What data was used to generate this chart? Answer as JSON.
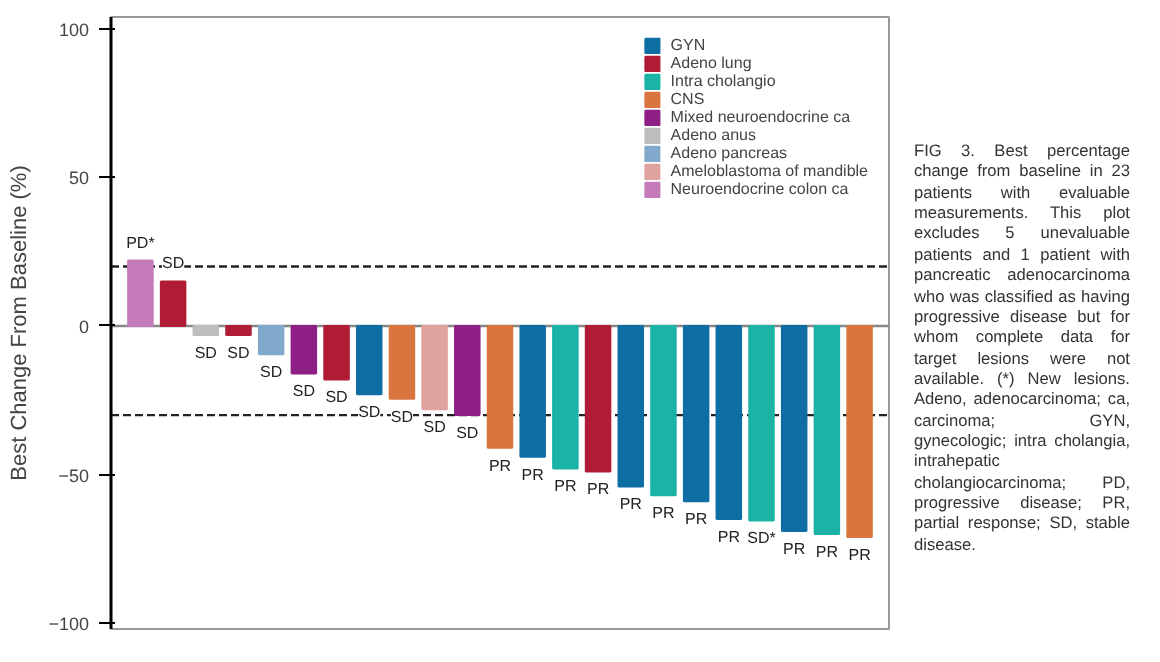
{
  "chart_data": {
    "type": "bar",
    "ylabel": "Best Change From Baseline (%)",
    "categories": [
      null,
      null,
      null,
      null,
      null,
      null,
      null,
      null,
      null,
      null,
      null,
      null,
      null,
      null,
      null,
      null,
      null,
      null,
      null,
      null,
      null,
      null,
      null
    ],
    "series": [
      {
        "name": "GYN",
        "color": "#0e6ea3",
        "values": [
          null,
          null,
          null,
          null,
          null,
          null,
          null,
          -23,
          null,
          null,
          null,
          null,
          -44,
          null,
          null,
          -54,
          null,
          -59,
          -65,
          null,
          -69,
          null,
          null
        ],
        "value_labels": [
          null,
          null,
          null,
          null,
          null,
          null,
          null,
          "SD",
          null,
          null,
          null,
          null,
          "PR",
          null,
          null,
          "PR",
          null,
          "PR",
          "PR",
          null,
          "PR",
          null,
          null
        ]
      },
      {
        "name": "Adeno lung",
        "color": "#b01c35",
        "values": [
          null,
          15,
          null,
          -3,
          null,
          null,
          -18,
          null,
          null,
          null,
          null,
          null,
          null,
          null,
          -49,
          null,
          null,
          null,
          null,
          null,
          null,
          null,
          null
        ],
        "value_labels": [
          null,
          "SD",
          null,
          "SD",
          null,
          null,
          "SD",
          null,
          null,
          null,
          null,
          null,
          null,
          null,
          "PR",
          null,
          null,
          null,
          null,
          null,
          null,
          null,
          null
        ]
      },
      {
        "name": "Intra cholangio",
        "color": "#1ab3a6",
        "values": [
          null,
          null,
          null,
          null,
          null,
          null,
          null,
          null,
          null,
          null,
          null,
          null,
          null,
          -48,
          null,
          null,
          -57,
          null,
          null,
          -65.5,
          null,
          -70,
          null
        ],
        "value_labels": [
          null,
          null,
          null,
          null,
          null,
          null,
          null,
          null,
          null,
          null,
          null,
          null,
          null,
          "PR",
          null,
          null,
          "PR",
          null,
          null,
          "SD*",
          null,
          "PR",
          null
        ]
      },
      {
        "name": "CNS",
        "color": "#d9763f",
        "values": [
          null,
          null,
          null,
          null,
          null,
          null,
          null,
          null,
          -24.5,
          null,
          null,
          -41,
          null,
          null,
          null,
          null,
          null,
          null,
          null,
          null,
          null,
          null,
          -71
        ],
        "value_labels": [
          null,
          null,
          null,
          null,
          null,
          null,
          null,
          null,
          "SD",
          null,
          null,
          "PR",
          null,
          null,
          null,
          null,
          null,
          null,
          null,
          null,
          null,
          null,
          "PR"
        ]
      },
      {
        "name": "Mixed neuroendocrine ca",
        "color": "#8e2085",
        "values": [
          null,
          null,
          null,
          null,
          null,
          -16,
          null,
          null,
          null,
          null,
          -30,
          null,
          null,
          null,
          null,
          null,
          null,
          null,
          null,
          null,
          null,
          null,
          null
        ],
        "value_labels": [
          null,
          null,
          null,
          null,
          null,
          "SD",
          null,
          null,
          null,
          null,
          "SD",
          null,
          null,
          null,
          null,
          null,
          null,
          null,
          null,
          null,
          null,
          null,
          null
        ]
      },
      {
        "name": "Adeno anus",
        "color": "#bdbdbd",
        "values": [
          null,
          null,
          -3,
          null,
          null,
          null,
          null,
          null,
          null,
          null,
          null,
          null,
          null,
          null,
          null,
          null,
          null,
          null,
          null,
          null,
          null,
          null,
          null
        ],
        "value_labels": [
          null,
          null,
          "SD",
          null,
          null,
          null,
          null,
          null,
          null,
          null,
          null,
          null,
          null,
          null,
          null,
          null,
          null,
          null,
          null,
          null,
          null,
          null,
          null
        ]
      },
      {
        "name": "Adeno pancreas",
        "color": "#80a9cc",
        "values": [
          null,
          null,
          null,
          null,
          -9.5,
          null,
          null,
          null,
          null,
          null,
          null,
          null,
          null,
          null,
          null,
          null,
          null,
          null,
          null,
          null,
          null,
          null,
          null
        ],
        "value_labels": [
          null,
          null,
          null,
          null,
          "SD",
          null,
          null,
          null,
          null,
          null,
          null,
          null,
          null,
          null,
          null,
          null,
          null,
          null,
          null,
          null,
          null,
          null,
          null
        ]
      },
      {
        "name": "Ameloblastoma of mandible",
        "color": "#e0a3a0",
        "values": [
          null,
          null,
          null,
          null,
          null,
          null,
          null,
          null,
          null,
          -28,
          null,
          null,
          null,
          null,
          null,
          null,
          null,
          null,
          null,
          null,
          null,
          null,
          null
        ],
        "value_labels": [
          null,
          null,
          null,
          null,
          null,
          null,
          null,
          null,
          null,
          "SD",
          null,
          null,
          null,
          null,
          null,
          null,
          null,
          null,
          null,
          null,
          null,
          null,
          null
        ]
      },
      {
        "name": "Neuroendocrine colon ca",
        "color": "#c47ab8",
        "values": [
          22,
          null,
          null,
          null,
          null,
          null,
          null,
          null,
          null,
          null,
          null,
          null,
          null,
          null,
          null,
          null,
          null,
          null,
          null,
          null,
          null,
          null,
          null
        ],
        "value_labels": [
          "PD*",
          null,
          null,
          null,
          null,
          null,
          null,
          null,
          null,
          null,
          null,
          null,
          null,
          null,
          null,
          null,
          null,
          null,
          null,
          null,
          null,
          null,
          null
        ]
      }
    ],
    "ylim": [
      -102,
      104
    ],
    "yticks": [
      -100,
      -50,
      0,
      50,
      100
    ],
    "ref_lines": [
      {
        "axis": "y",
        "value": 20,
        "line_style": "dashed",
        "color": "#222222"
      },
      {
        "axis": "y",
        "value": -30,
        "line_style": "dashed",
        "color": "#222222"
      },
      {
        "axis": "y",
        "value": 0,
        "line_style": "solid",
        "color": "#888888"
      }
    ],
    "legend": "top right",
    "grid": false,
    "annotations": [
      "FIG 3. Best percentage change from baseline in 23 patients with evaluable measurements. This plot excludes 5 unevaluable patients and 1 patient with pancreatic adenocarcinoma who was classified as having progressive disease but for whom complete data for target lesions were not available. (*) New lesions. Adeno, adenocarcinoma; ca, carcinoma; GYN, gynecologic; intra cholangia, intrahepatic cholangiocarcinoma; PD, progressive disease; PR, partial response; SD, stable disease."
    ]
  }
}
